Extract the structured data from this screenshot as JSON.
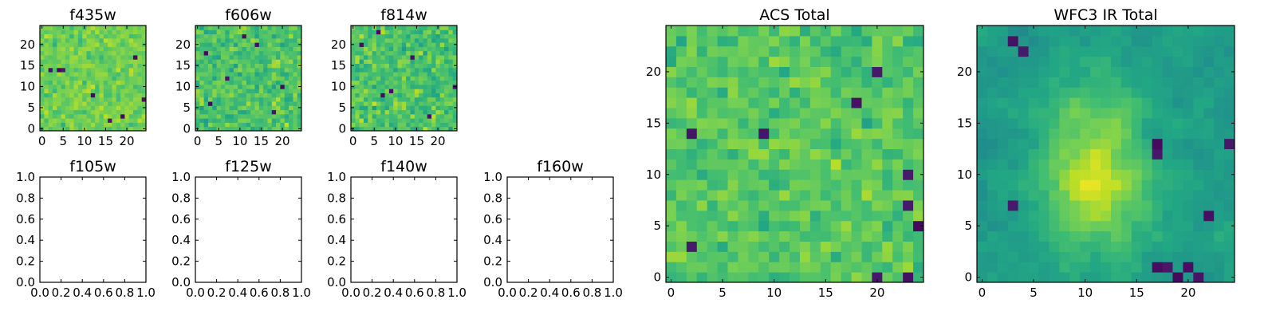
{
  "chart_data": [
    {
      "type": "heatmap",
      "title": "f435w",
      "grid_size": 25,
      "xlim": [
        -0.5,
        24.5
      ],
      "ylim": [
        -0.5,
        24.5
      ],
      "xticks": [
        0,
        5,
        10,
        15,
        20
      ],
      "yticks": [
        0,
        5,
        10,
        15,
        20
      ],
      "colormap": "viridis",
      "has_image": true,
      "seed": 11,
      "smooth": 0,
      "center_level": 0.78,
      "spread": 0.1,
      "dark_pixels": [
        [
          2,
          14
        ],
        [
          5,
          14
        ],
        [
          4,
          14
        ],
        [
          22,
          17
        ],
        [
          19,
          3
        ],
        [
          24,
          7
        ],
        [
          16,
          2
        ],
        [
          12,
          8
        ]
      ]
    },
    {
      "type": "heatmap",
      "title": "f606w",
      "grid_size": 25,
      "xlim": [
        -0.5,
        24.5
      ],
      "ylim": [
        -0.5,
        24.5
      ],
      "xticks": [
        0,
        5,
        10,
        15,
        20
      ],
      "yticks": [
        0,
        5,
        10,
        15,
        20
      ],
      "colormap": "viridis",
      "has_image": true,
      "seed": 23,
      "smooth": 0,
      "center_level": 0.72,
      "spread": 0.13,
      "dark_pixels": [
        [
          2,
          18
        ],
        [
          7,
          12
        ],
        [
          18,
          4
        ],
        [
          14,
          20
        ],
        [
          3,
          6
        ],
        [
          20,
          10
        ],
        [
          11,
          22
        ]
      ]
    },
    {
      "type": "heatmap",
      "title": "f814w",
      "grid_size": 25,
      "xlim": [
        -0.5,
        24.5
      ],
      "ylim": [
        -0.5,
        24.5
      ],
      "xticks": [
        0,
        5,
        10,
        15,
        20
      ],
      "yticks": [
        0,
        5,
        10,
        15,
        20
      ],
      "colormap": "viridis",
      "has_image": true,
      "seed": 37,
      "smooth": 0,
      "center_level": 0.72,
      "spread": 0.14,
      "dark_pixels": [
        [
          2,
          20
        ],
        [
          7,
          8
        ],
        [
          9,
          9
        ],
        [
          14,
          17
        ],
        [
          18,
          3
        ],
        [
          24,
          10
        ],
        [
          6,
          23
        ]
      ]
    },
    {
      "type": "heatmap",
      "title": "f105w",
      "xlim": [
        0,
        1
      ],
      "ylim": [
        0,
        1
      ],
      "xticks": [
        "0.0",
        "0.2",
        "0.4",
        "0.6",
        "0.8",
        "1.0"
      ],
      "yticks": [
        "0.0",
        "0.2",
        "0.4",
        "0.6",
        "0.8",
        "1.0"
      ],
      "has_image": false
    },
    {
      "type": "heatmap",
      "title": "f125w",
      "xlim": [
        0,
        1
      ],
      "ylim": [
        0,
        1
      ],
      "xticks": [
        "0.0",
        "0.2",
        "0.4",
        "0.6",
        "0.8",
        "1.0"
      ],
      "yticks": [
        "0.0",
        "0.2",
        "0.4",
        "0.6",
        "0.8",
        "1.0"
      ],
      "has_image": false
    },
    {
      "type": "heatmap",
      "title": "f140w",
      "xlim": [
        0,
        1
      ],
      "ylim": [
        0,
        1
      ],
      "xticks": [
        "0.0",
        "0.2",
        "0.4",
        "0.6",
        "0.8",
        "1.0"
      ],
      "yticks": [
        "0.0",
        "0.2",
        "0.4",
        "0.6",
        "0.8",
        "1.0"
      ],
      "has_image": false
    },
    {
      "type": "heatmap",
      "title": "f160w",
      "xlim": [
        0,
        1
      ],
      "ylim": [
        0,
        1
      ],
      "xticks": [
        "0.0",
        "0.2",
        "0.4",
        "0.6",
        "0.8",
        "1.0"
      ],
      "yticks": [
        "0.0",
        "0.2",
        "0.4",
        "0.6",
        "0.8",
        "1.0"
      ],
      "has_image": false
    },
    {
      "type": "heatmap",
      "title": "ACS Total",
      "grid_size": 25,
      "xlim": [
        -0.5,
        24.5
      ],
      "ylim": [
        -0.5,
        24.5
      ],
      "xticks": [
        0,
        5,
        10,
        15,
        20
      ],
      "yticks": [
        0,
        5,
        10,
        15,
        20
      ],
      "colormap": "viridis",
      "has_image": true,
      "seed": 53,
      "smooth": 0,
      "center_level": 0.74,
      "spread": 0.11,
      "dark_pixels": [
        [
          2,
          14
        ],
        [
          9,
          14
        ],
        [
          18,
          17
        ],
        [
          20,
          20
        ],
        [
          23,
          10
        ],
        [
          23,
          7
        ],
        [
          24,
          5
        ],
        [
          23,
          0
        ],
        [
          20,
          0
        ],
        [
          2,
          3
        ]
      ]
    },
    {
      "type": "heatmap",
      "title": "WFC3 IR Total",
      "grid_size": 25,
      "xlim": [
        -0.5,
        24.5
      ],
      "ylim": [
        -0.5,
        24.5
      ],
      "xticks": [
        0,
        5,
        10,
        15,
        20
      ],
      "yticks": [
        0,
        5,
        10,
        15,
        20
      ],
      "colormap": "viridis",
      "has_image": true,
      "seed": 71,
      "smooth": 1,
      "center_level": 0.55,
      "spread": 0.12,
      "bright_blob": [
        11,
        10,
        3.5
      ],
      "dark_pixels": [
        [
          3,
          23
        ],
        [
          4,
          22
        ],
        [
          17,
          12
        ],
        [
          17,
          13
        ],
        [
          24,
          13
        ],
        [
          22,
          6
        ],
        [
          17,
          1
        ],
        [
          18,
          1
        ],
        [
          19,
          0
        ],
        [
          20,
          1
        ],
        [
          21,
          0
        ],
        [
          3,
          7
        ]
      ]
    }
  ]
}
